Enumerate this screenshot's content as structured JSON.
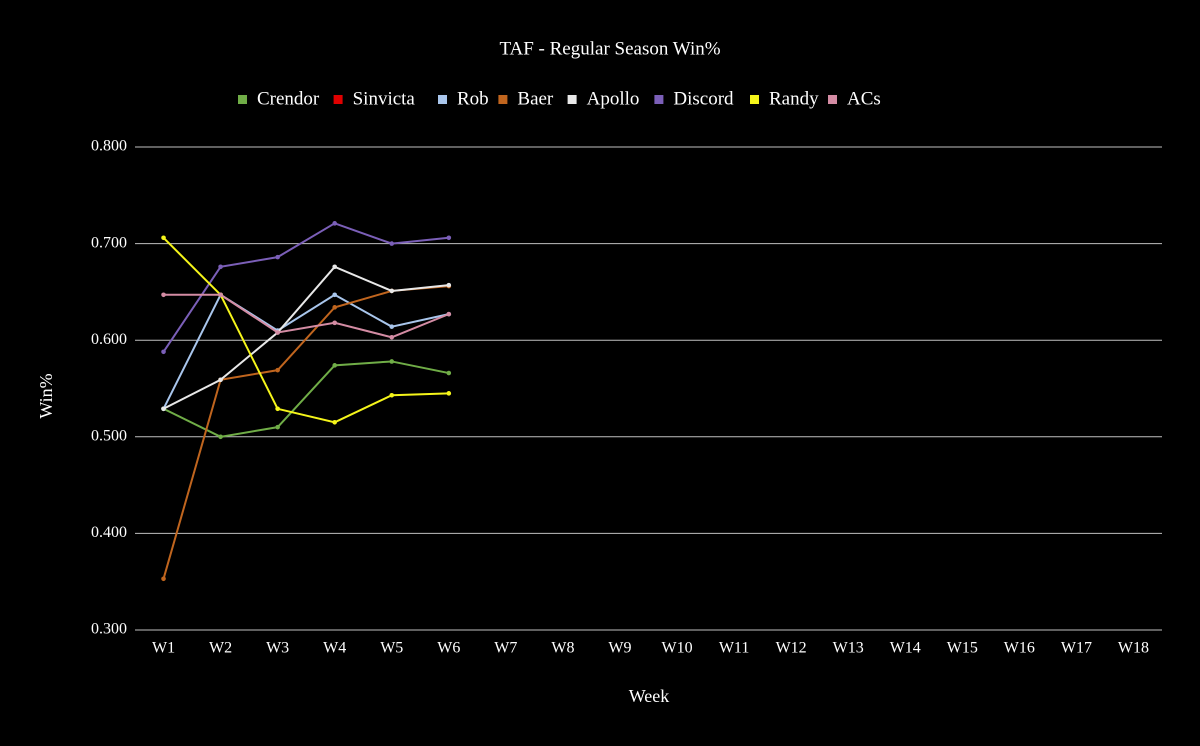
{
  "chart_data": {
    "type": "line",
    "title": "TAF - Regular Season Win%",
    "x_label": "Week",
    "y_label": "Win%",
    "categories": [
      "W1",
      "W2",
      "W3",
      "W4",
      "W5",
      "W6",
      "W7",
      "W8",
      "W9",
      "W10",
      "W11",
      "W12",
      "W13",
      "W14",
      "W15",
      "W16",
      "W17",
      "W18"
    ],
    "ylim": [
      0.3,
      0.8
    ],
    "yticks": [
      {
        "value": 0.3,
        "label": "0.300"
      },
      {
        "value": 0.4,
        "label": "0.400"
      },
      {
        "value": 0.5,
        "label": "0.500"
      },
      {
        "value": 0.6,
        "label": "0.600"
      },
      {
        "value": 0.7,
        "label": "0.700"
      },
      {
        "value": 0.8,
        "label": "0.800"
      }
    ],
    "grid": true,
    "legend": "top",
    "series": [
      {
        "name": "Crendor",
        "color": "#70ad47",
        "values": [
          0.529,
          0.5,
          0.51,
          0.574,
          0.578,
          0.566,
          null,
          null,
          null,
          null,
          null,
          null,
          null,
          null,
          null,
          null,
          null,
          null
        ]
      },
      {
        "name": "Sinvicta",
        "color": "#e00000",
        "values": [
          null,
          null,
          null,
          null,
          null,
          null,
          null,
          null,
          null,
          null,
          null,
          null,
          null,
          null,
          null,
          null,
          null,
          null
        ]
      },
      {
        "name": "Rob",
        "color": "#a9c6ec",
        "values": [
          0.529,
          0.647,
          0.61,
          0.647,
          0.614,
          0.627,
          null,
          null,
          null,
          null,
          null,
          null,
          null,
          null,
          null,
          null,
          null,
          null
        ]
      },
      {
        "name": "Baer",
        "color": "#c0651e",
        "values": [
          0.353,
          0.559,
          0.569,
          0.634,
          0.651,
          0.656,
          null,
          null,
          null,
          null,
          null,
          null,
          null,
          null,
          null,
          null,
          null,
          null
        ]
      },
      {
        "name": "Apollo",
        "color": "#e8e8e8",
        "values": [
          0.529,
          0.559,
          0.608,
          0.676,
          0.651,
          0.657,
          null,
          null,
          null,
          null,
          null,
          null,
          null,
          null,
          null,
          null,
          null,
          null
        ]
      },
      {
        "name": "Discord",
        "color": "#7b5fb8",
        "values": [
          0.588,
          0.676,
          0.686,
          0.721,
          0.7,
          0.706,
          null,
          null,
          null,
          null,
          null,
          null,
          null,
          null,
          null,
          null,
          null,
          null
        ]
      },
      {
        "name": "Randy",
        "color": "#f5f51a",
        "values": [
          0.706,
          0.647,
          0.529,
          0.515,
          0.543,
          0.545,
          null,
          null,
          null,
          null,
          null,
          null,
          null,
          null,
          null,
          null,
          null,
          null
        ]
      },
      {
        "name": "ACs",
        "color": "#d48ca4",
        "values": [
          0.647,
          0.647,
          0.608,
          0.618,
          0.603,
          0.627,
          null,
          null,
          null,
          null,
          null,
          null,
          null,
          null,
          null,
          null,
          null,
          null
        ]
      }
    ]
  }
}
